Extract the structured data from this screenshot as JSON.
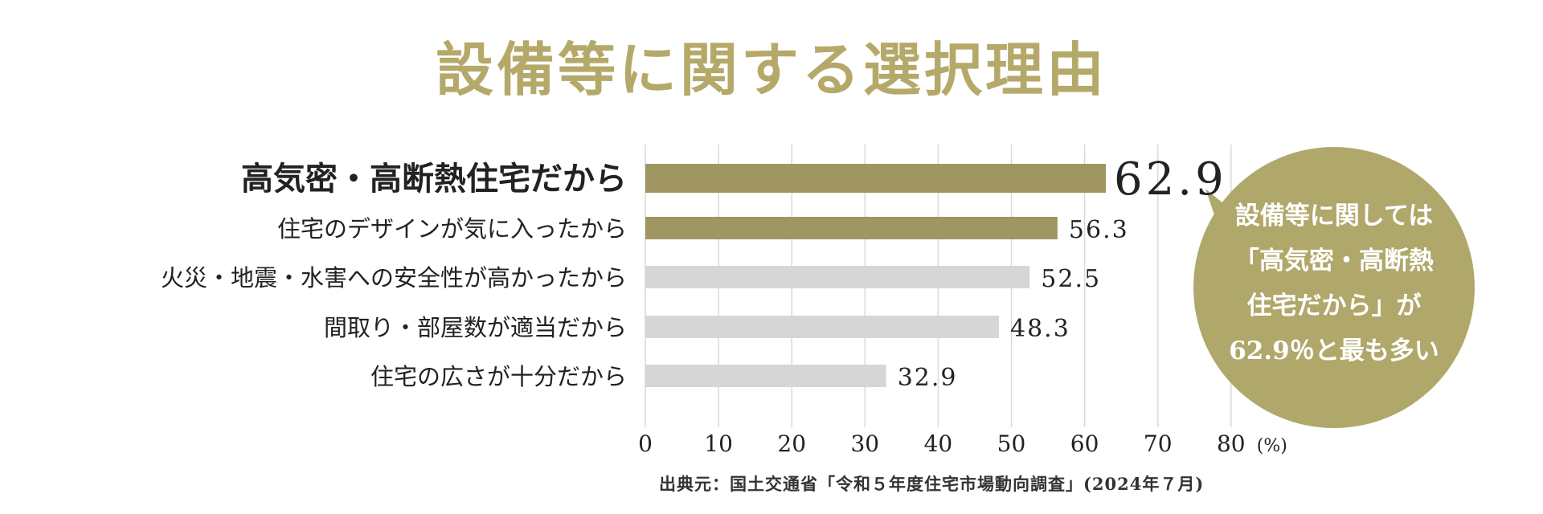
{
  "title": "設備等に関する選択理由",
  "colors": {
    "title": "#b5a96a",
    "highlight_bar": "#9f9661",
    "other_bar": "#d6d6d6",
    "grid": "#d9d9d9",
    "bubble": "#b0a76a",
    "text": "#222222"
  },
  "callout": {
    "lines": [
      "設備等に関しては",
      "「高気密・高断熱",
      "住宅だから」が",
      "62.9％と最も多い"
    ]
  },
  "source": "出典元：国土交通省「令和５年度住宅市場動向調査」(2024年７月)",
  "chart_data": {
    "type": "bar",
    "orientation": "horizontal",
    "categories": [
      "高気密・高断熱住宅だから",
      "住宅のデザインが気に入ったから",
      "火災・地震・水害への安全性が高かったから",
      "間取り・部屋数が適当だから",
      "住宅の広さが十分だから"
    ],
    "values": [
      62.9,
      56.3,
      52.5,
      48.3,
      32.9
    ],
    "value_labels": [
      "62.9",
      "56.3",
      "52.5",
      "48.3",
      "32.9"
    ],
    "highlighted": [
      true,
      true,
      false,
      false,
      false
    ],
    "x_ticks": [
      "0",
      "10",
      "20",
      "30",
      "40",
      "50",
      "60",
      "70",
      "80"
    ],
    "x_unit": "(%)",
    "xlim": [
      0,
      80
    ],
    "grid": true
  }
}
